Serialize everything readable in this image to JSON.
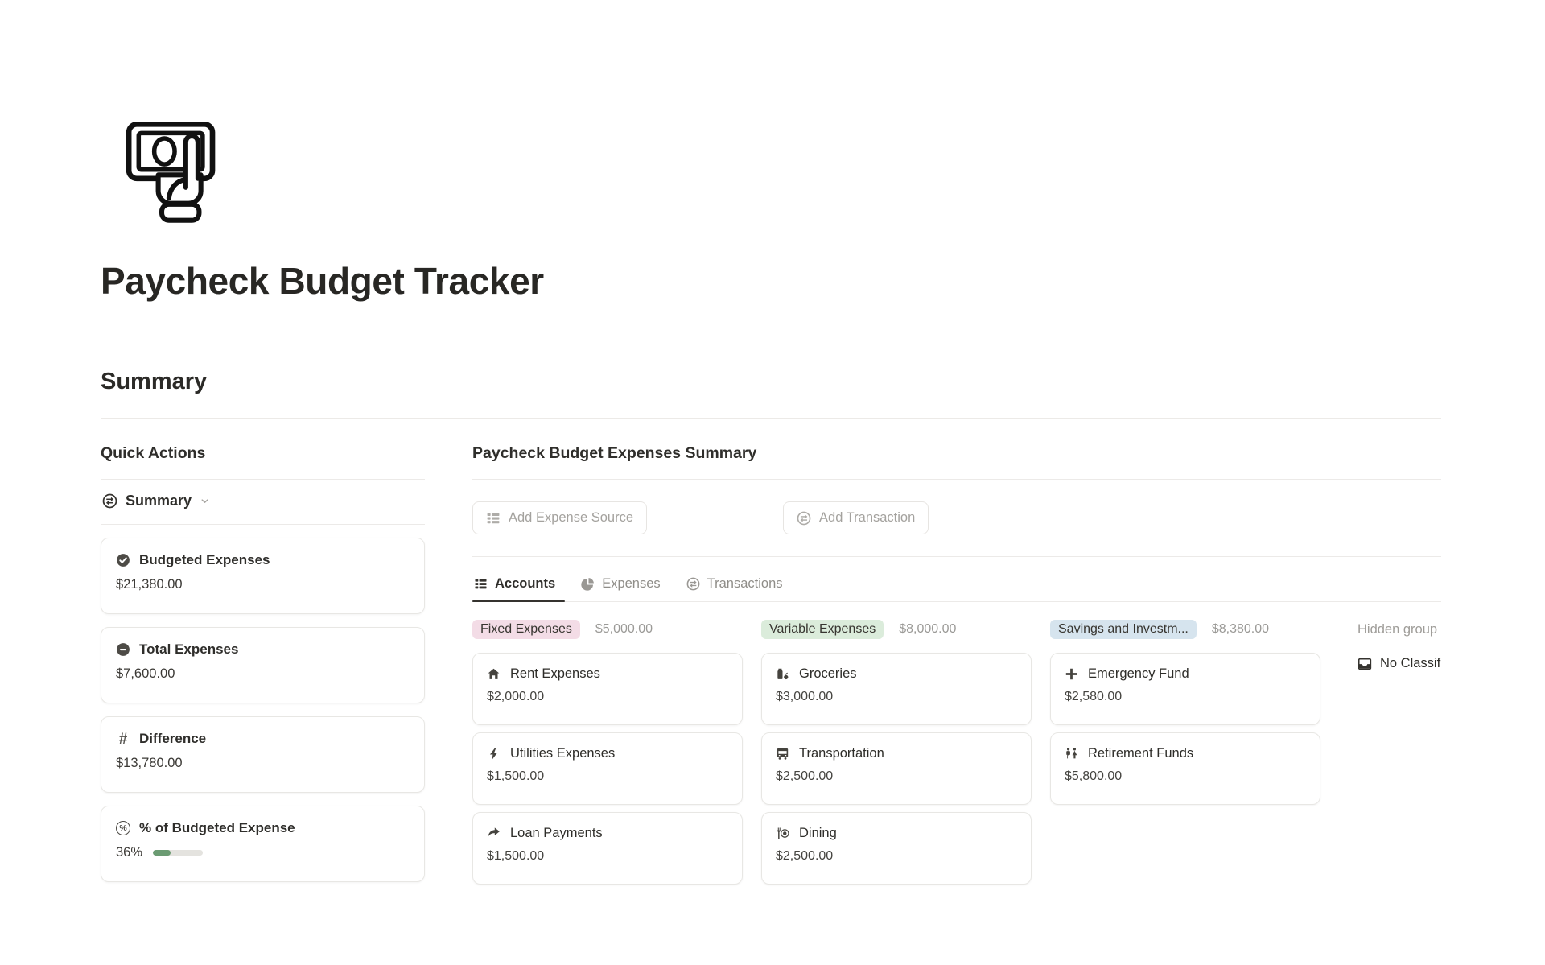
{
  "page": {
    "title": "Paycheck Budget Tracker",
    "icon": "cash-in-hand-icon"
  },
  "icons": {
    "hash_glyph": "#",
    "percent_glyph": "%"
  },
  "summary_section": {
    "heading": "Summary"
  },
  "quick_actions": {
    "heading": "Quick Actions",
    "view_selector": {
      "label": "Summary",
      "icon": "transactions-icon"
    },
    "cards": [
      {
        "icon": "check-circle-icon",
        "label": "Budgeted Expenses",
        "value": "$21,380.00"
      },
      {
        "icon": "minus-circle-icon",
        "label": "Total Expenses",
        "value": "$7,600.00"
      },
      {
        "icon": "hash-icon",
        "label": "Difference",
        "value": "$13,780.00"
      },
      {
        "icon": "percent-circle-icon",
        "label": "% of Budgeted Expense",
        "value": "36%",
        "progress_percent": 36
      }
    ]
  },
  "expenses_summary": {
    "heading": "Paycheck Budget Expenses Summary",
    "actions": {
      "add_expense_source": {
        "label": "Add Expense Source",
        "icon": "table-rows-icon"
      },
      "add_transaction": {
        "label": "Add Transaction",
        "icon": "transactions-icon"
      }
    },
    "tabs": [
      {
        "label": "Accounts",
        "icon": "table-rows-icon",
        "active": true
      },
      {
        "label": "Expenses",
        "icon": "pie-chart-icon",
        "active": false
      },
      {
        "label": "Transactions",
        "icon": "transactions-icon",
        "active": false
      }
    ],
    "board": {
      "columns": [
        {
          "name": "Fixed Expenses",
          "total": "$5,000.00",
          "tag_color": "#f3dce6",
          "cards": [
            {
              "icon": "house-icon",
              "title": "Rent Expenses",
              "amount": "$2,000.00"
            },
            {
              "icon": "bolt-icon",
              "title": "Utilities Expenses",
              "amount": "$1,500.00"
            },
            {
              "icon": "forward-arrow-icon",
              "title": "Loan Payments",
              "amount": "$1,500.00"
            }
          ]
        },
        {
          "name": "Variable Expenses",
          "total": "$8,000.00",
          "tag_color": "#dbecdb",
          "cards": [
            {
              "icon": "groceries-icon",
              "title": "Groceries",
              "amount": "$3,000.00"
            },
            {
              "icon": "bus-icon",
              "title": "Transportation",
              "amount": "$2,500.00"
            },
            {
              "icon": "dining-icon",
              "title": "Dining",
              "amount": "$2,500.00"
            }
          ]
        },
        {
          "name": "Savings and Investm...",
          "total": "$8,380.00",
          "tag_color": "#d6e4ee",
          "cards": [
            {
              "icon": "plus-icon",
              "title": "Emergency Fund",
              "amount": "$2,580.00"
            },
            {
              "icon": "family-icon",
              "title": "Retirement Funds",
              "amount": "$5,800.00"
            }
          ]
        },
        {
          "name": "Hidden group",
          "is_hidden": true,
          "rows": [
            {
              "icon": "inbox-icon",
              "label": "No Classification"
            }
          ]
        }
      ]
    }
  },
  "colors": {
    "progress_green": "#6b9b72",
    "tag_pink": "#f3dce6",
    "tag_green": "#dbecdb",
    "tag_blue": "#d6e4ee",
    "text_dark": "#2f2e2b",
    "text_gray": "#9b9a97"
  }
}
